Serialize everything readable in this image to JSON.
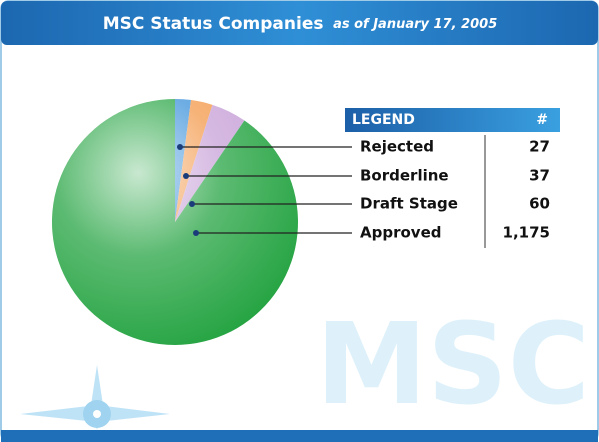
{
  "chart_data": {
    "type": "pie",
    "title": "MSC Status Companies",
    "subtitle": "as of January 17, 2005",
    "legend_title": "LEGEND",
    "legend_value_header": "#",
    "watermark": "MSC",
    "categories": [
      "Rejected",
      "Borderline",
      "Draft Stage",
      "Approved"
    ],
    "values": [
      27,
      37,
      60,
      1175
    ],
    "value_labels": [
      "27",
      "37",
      "60",
      "1,175"
    ],
    "colors": [
      "#3d92da",
      "#f39a4c",
      "#c8a2d8",
      "#26a443"
    ],
    "legend": "right"
  }
}
